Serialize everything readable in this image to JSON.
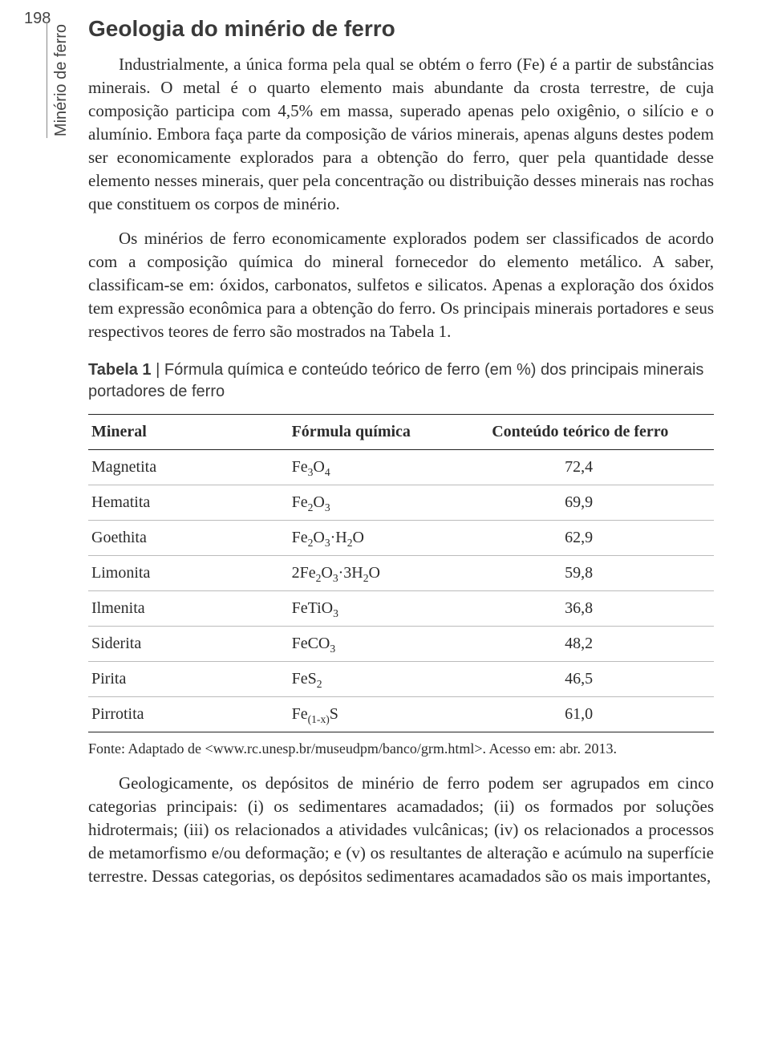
{
  "page_number": "198",
  "side_label": "Minério de ferro",
  "title": "Geologia do minério de ferro",
  "paragraphs": {
    "p1": "Industrialmente, a única forma pela qual se obtém o ferro (Fe) é a partir de substâncias minerais. O metal é o quarto elemento mais abundante da crosta terrestre, de cuja composição participa com 4,5% em massa, superado apenas pelo oxigênio, o silício e o alumínio. Embora faça parte da composição de vários minerais, apenas alguns destes podem ser economicamente explorados para a obtenção do ferro, quer pela quantidade desse elemento nesses minerais, quer pela concentração ou distribuição desses minerais nas rochas que constituem os corpos de minério.",
    "p2": "Os minérios de ferro economicamente explorados podem ser classificados de acordo com a composição química do mineral fornecedor do elemento metálico. A saber, classificam-se em: óxidos, carbonatos, sulfetos e silicatos. Apenas a exploração dos óxidos tem expressão econômica para a obtenção do ferro. Os principais minerais portadores e seus respectivos teores de ferro são mostrados na Tabela 1.",
    "p3": "Geologicamente, os depósitos de minério de ferro podem ser agrupados em cinco categorias principais: (i) os sedimentares acamadados; (ii) os formados por soluções hidrotermais; (iii) os relacionados a atividades vulcânicas; (iv) os relacionados a processos de metamorfismo e/ou deformação; e (v) os resultantes de alteração e acúmulo na superfície terrestre. Dessas categorias, os depósitos sedimentares acamadados são os mais importantes,"
  },
  "table": {
    "caption_lead": "Tabela 1",
    "caption_sep": " | ",
    "caption_rest": "Fórmula química e conteúdo teórico de ferro (em %) dos principais minerais portadores de ferro",
    "headers": {
      "mineral": "Mineral",
      "formula": "Fórmula química",
      "content": "Conteúdo teórico de ferro"
    },
    "rows": [
      {
        "mineral": "Magnetita",
        "formula_html": "Fe<span class=\"sub\">3</span>O<span class=\"sub\">4</span>",
        "content": "72,4"
      },
      {
        "mineral": "Hematita",
        "formula_html": "Fe<span class=\"sub\">2</span>O<span class=\"sub\">3</span>",
        "content": "69,9"
      },
      {
        "mineral": "Goethita",
        "formula_html": "Fe<span class=\"sub\">2</span>O<span class=\"sub\">3</span>·H<span class=\"sub\">2</span>O",
        "content": "62,9"
      },
      {
        "mineral": "Limonita",
        "formula_html": "2Fe<span class=\"sub\">2</span>O<span class=\"sub\">3</span>·3H<span class=\"sub\">2</span>O",
        "content": "59,8"
      },
      {
        "mineral": "Ilmenita",
        "formula_html": "FeTiO<span class=\"sub\">3</span>",
        "content": "36,8"
      },
      {
        "mineral": "Siderita",
        "formula_html": "FeCO<span class=\"sub\">3</span>",
        "content": "48,2"
      },
      {
        "mineral": "Pirita",
        "formula_html": "FeS<span class=\"sub\">2</span>",
        "content": "46,5"
      },
      {
        "mineral": "Pirrotita",
        "formula_html": "Fe<span class=\"sub\">(1-x)</span>S",
        "content": "61,0"
      }
    ],
    "source": "Fonte: Adaptado de <www.rc.unesp.br/museudpm/banco/grm.html>. Acesso em: abr. 2013."
  }
}
